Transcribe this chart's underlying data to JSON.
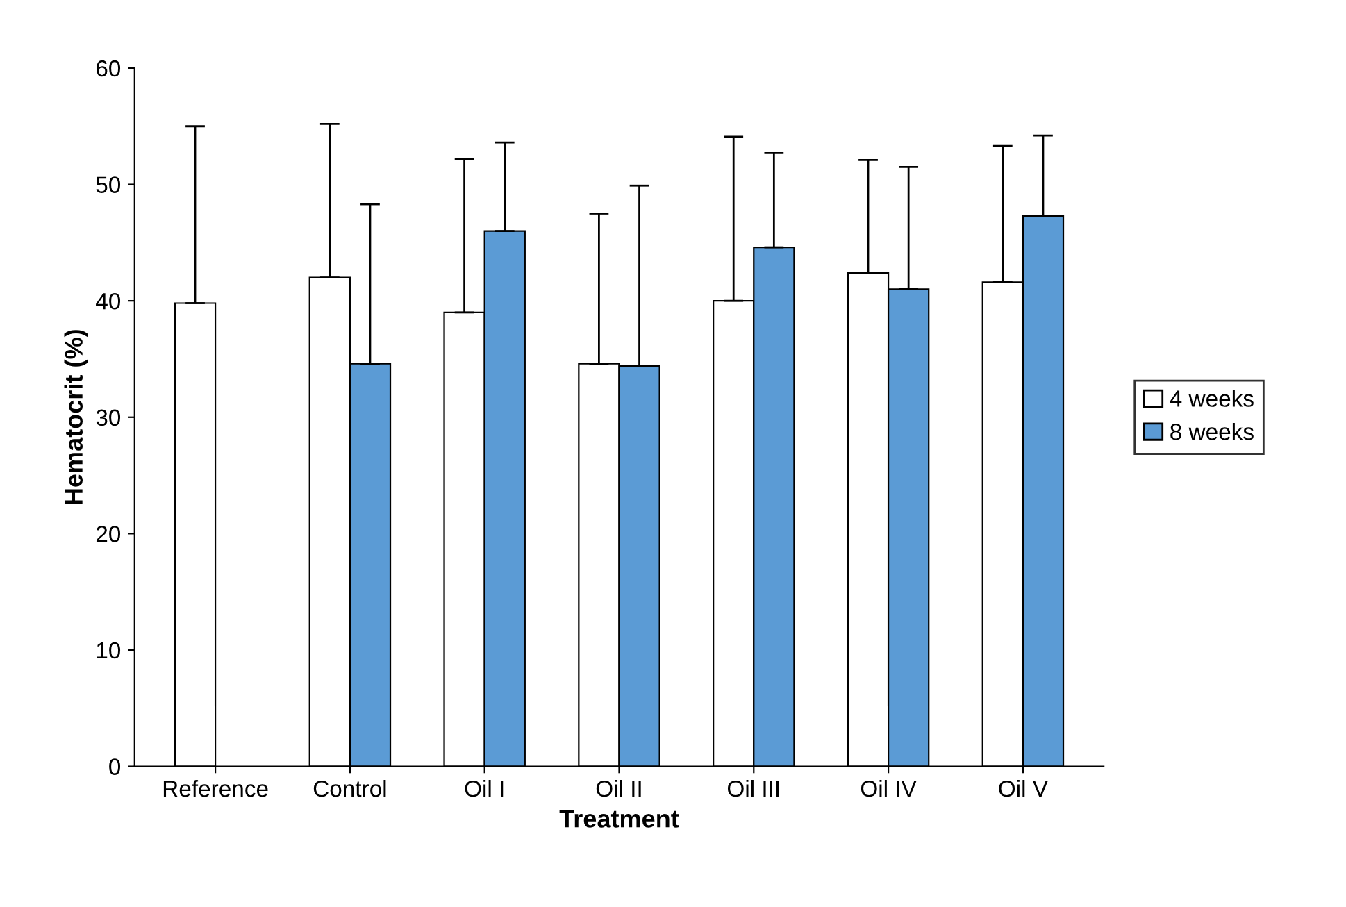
{
  "chart_data": {
    "type": "bar",
    "xlabel": "Treatment",
    "ylabel": "Hematocrit (%)",
    "categories": [
      "Reference",
      "Control",
      "Oil I",
      "Oil II",
      "Oil III",
      "Oil IV",
      "Oil V"
    ],
    "series": [
      {
        "name": "4 weeks",
        "color": "#ffffff",
        "values": [
          39.8,
          42,
          39,
          34.6,
          40,
          42.4,
          41.6
        ],
        "errors": [
          [
            39.8,
            55
          ],
          [
            42,
            55.2
          ],
          [
            39,
            52.2
          ],
          [
            34.6,
            47.5
          ],
          [
            40,
            54.1
          ],
          [
            42.4,
            52.1
          ],
          [
            41.6,
            53.3
          ]
        ]
      },
      {
        "name": "8 weeks",
        "color": "#5b9bd5",
        "values": [
          null,
          34.6,
          46,
          34.4,
          44.6,
          41,
          47.3
        ],
        "errors": [
          null,
          [
            34.6,
            48.3
          ],
          [
            46,
            53.6
          ],
          [
            34.4,
            49.9
          ],
          [
            44.6,
            52.7
          ],
          [
            41,
            51.5
          ],
          [
            47.3,
            54.2
          ]
        ]
      }
    ],
    "ylim": [
      0,
      60
    ],
    "yticks": [
      0,
      10,
      20,
      30,
      40,
      50,
      60
    ],
    "grid": false,
    "legend": "right"
  }
}
